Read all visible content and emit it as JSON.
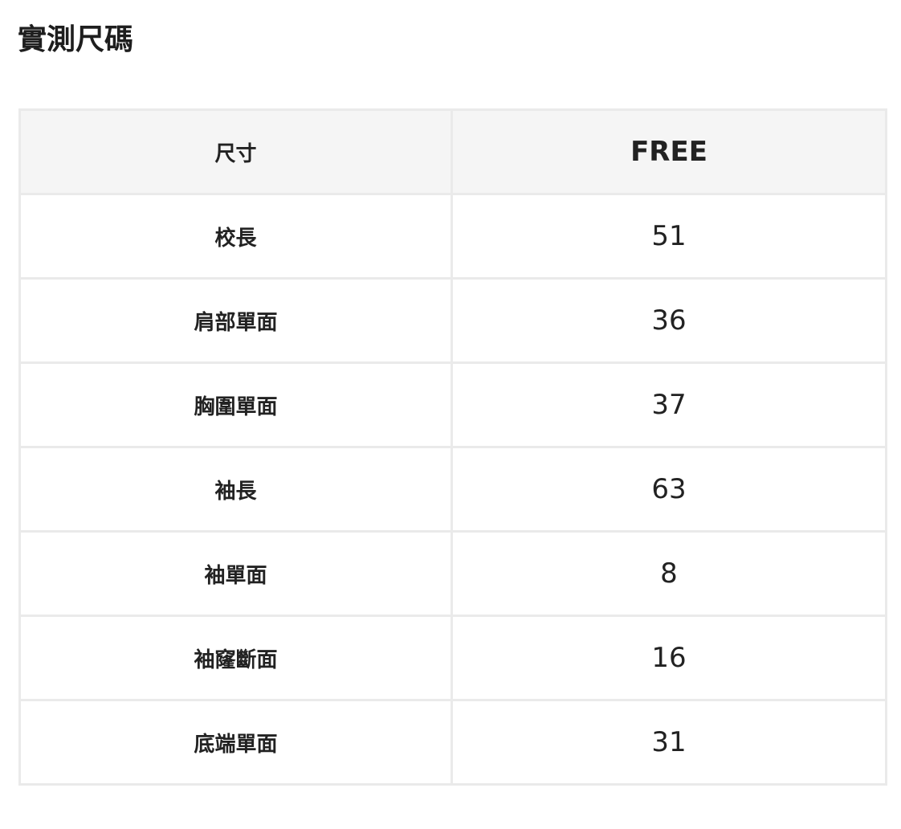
{
  "title": "實測尺碼",
  "table": {
    "header": {
      "label": "尺寸",
      "size": "FREE"
    },
    "rows": [
      {
        "label": "校長",
        "value": "51"
      },
      {
        "label": "肩部單面",
        "value": "36"
      },
      {
        "label": "胸圍單面",
        "value": "37"
      },
      {
        "label": "袖長",
        "value": "63"
      },
      {
        "label": "袖單面",
        "value": "8"
      },
      {
        "label": "袖窿斷面",
        "value": "16"
      },
      {
        "label": "底端單面",
        "value": "31"
      }
    ]
  }
}
